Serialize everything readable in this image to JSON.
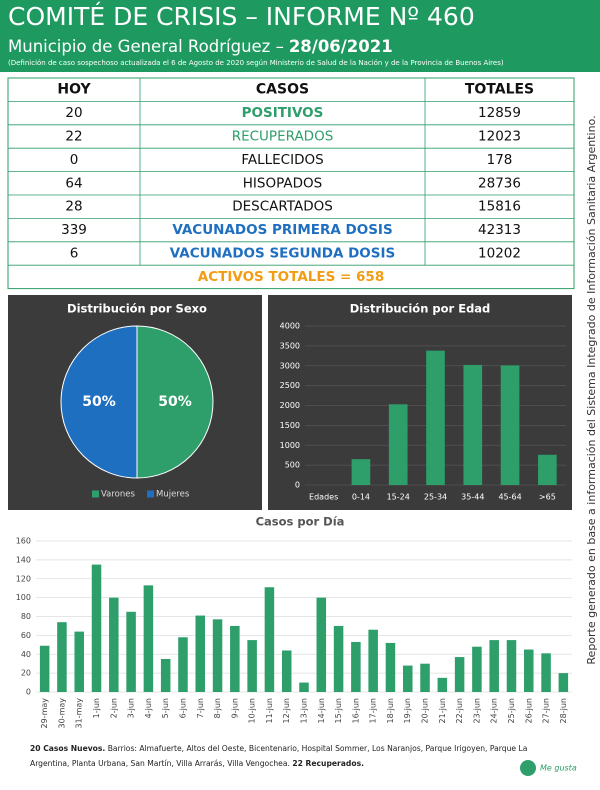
{
  "header": {
    "title": "COMITÉ DE CRISIS – INFORME Nº 460",
    "subtitle": "Municipio de General Rodríguez –",
    "date": "28/06/2021",
    "note": "(Definición de caso sospechoso actualizada el 6 de Agosto de 2020 según Ministerio de Salud de la Nación y de la Provincia de Buenos Aires)"
  },
  "table": {
    "columns": [
      "HOY",
      "CASOS",
      "TOTALES"
    ],
    "rows": [
      [
        20,
        "POSITIVOS",
        12859
      ],
      [
        22,
        "RECUPERADOS",
        12023
      ],
      [
        0,
        "FALLECIDOS",
        178
      ],
      [
        64,
        "HISOPADOS",
        28736
      ],
      [
        28,
        "DESCARTADOS",
        15816
      ],
      [
        339,
        "VACUNADOS PRIMERA DOSIS",
        42313
      ],
      [
        6,
        "VACUNADOS SEGUNDA DOSIS",
        10202
      ]
    ],
    "summary": "ACTIVOS TOTALES = 658"
  },
  "chart_data": [
    {
      "type": "pie",
      "title": "Distribución por Sexo",
      "categories": [
        "Varones",
        "Mujeres"
      ],
      "values": [
        50,
        50
      ],
      "value_labels": [
        "50%",
        "50%"
      ],
      "colors": [
        "#2e9e6a",
        "#1f6fc0"
      ],
      "legend": "bottom"
    },
    {
      "type": "bar",
      "title": "Distribución por Edad",
      "x_label": "Edades",
      "categories": [
        "0-14",
        "15-24",
        "25-34",
        "35-44",
        "45-64",
        ">65"
      ],
      "values": [
        650,
        2030,
        3380,
        3020,
        3010,
        760
      ],
      "color": "#2e9e6a",
      "ylim": [
        0,
        4000
      ],
      "yticks": [
        0,
        500,
        1000,
        1500,
        2000,
        2500,
        3000,
        3500,
        4000
      ],
      "grid": true
    },
    {
      "type": "bar",
      "title": "Casos por Día",
      "categories": [
        "29-may",
        "30-may",
        "31-may",
        "1-jun",
        "2-jun",
        "3-jun",
        "4-jun",
        "5-jun",
        "6-jun",
        "7-jun",
        "8-jun",
        "9-jun",
        "10-jun",
        "11-jun",
        "12-jun",
        "13-jun",
        "14-jun",
        "15-jun",
        "16-jun",
        "17-jun",
        "18-jun",
        "19-jun",
        "20-jun",
        "21-jun",
        "22-jun",
        "23-jun",
        "24-jun",
        "25-jun",
        "26-jun",
        "27-jun",
        "28-jun"
      ],
      "values": [
        49,
        74,
        64,
        135,
        100,
        85,
        113,
        35,
        58,
        81,
        77,
        70,
        55,
        111,
        44,
        10,
        100,
        70,
        53,
        66,
        52,
        28,
        30,
        15,
        37,
        48,
        55,
        55,
        45,
        41,
        20
      ],
      "color": "#2e9e6a",
      "ylim": [
        0,
        160
      ],
      "yticks": [
        0,
        20,
        40,
        60,
        80,
        100,
        120,
        140,
        160
      ],
      "grid": true
    }
  ],
  "footer": {
    "new_cases": "20 Casos Nuevos.",
    "barrios": "Barrios: Almafuerte, Altos del Oeste, Bicentenario, Hospital Sommer, Los Naranjos, Parque Irigoyen, Parque La Argentina, Planta Urbana, San Martín, Villa Arrarás, Villa Vengochea.",
    "recovered": "22 Recuperados."
  },
  "side_note": "Reporte generado en base a información del Sistema Integrado de Información Sanitaria Argentino.",
  "logo": "Me gusta"
}
